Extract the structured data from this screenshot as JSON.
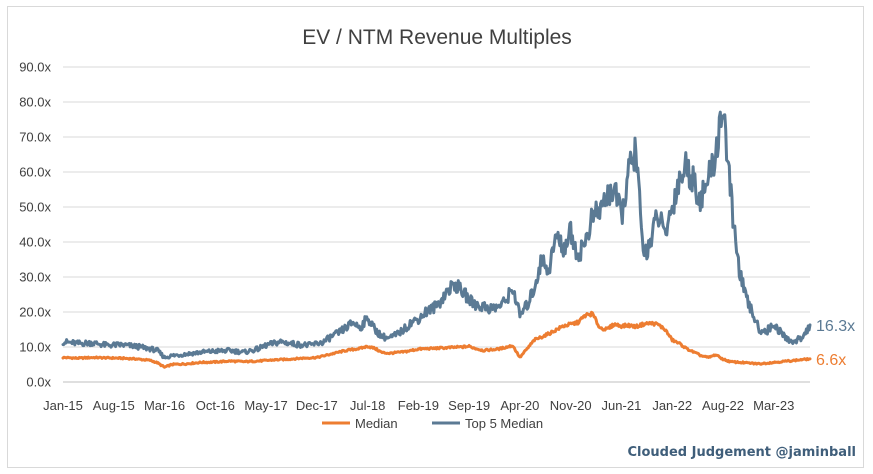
{
  "chart_data": {
    "type": "line",
    "title": "EV / NTM Revenue Multiples",
    "xlabel": "",
    "ylabel": "",
    "ylim": [
      0,
      90
    ],
    "y_ticks": [
      "0.0x",
      "10.0x",
      "20.0x",
      "30.0x",
      "40.0x",
      "50.0x",
      "60.0x",
      "70.0x",
      "80.0x",
      "90.0x"
    ],
    "x_ticks": [
      "Jan-15",
      "Aug-15",
      "Mar-16",
      "Oct-16",
      "May-17",
      "Dec-17",
      "Jul-18",
      "Feb-19",
      "Sep-19",
      "Apr-20",
      "Nov-20",
      "Jun-21",
      "Jan-22",
      "Aug-22",
      "Mar-23"
    ],
    "x_tick_months": [
      0,
      7,
      14,
      21,
      28,
      35,
      42,
      49,
      56,
      63,
      70,
      77,
      84,
      91,
      98
    ],
    "x_range_months": [
      0,
      103
    ],
    "grid": true,
    "legend_position": "bottom",
    "series": [
      {
        "name": "Median",
        "color": "#ed7d31",
        "end_label": "6.6x",
        "points": [
          [
            0,
            7.0
          ],
          [
            2,
            6.8
          ],
          [
            4,
            7.0
          ],
          [
            6,
            6.9
          ],
          [
            8,
            6.8
          ],
          [
            10,
            6.6
          ],
          [
            12,
            6.2
          ],
          [
            13,
            5.5
          ],
          [
            14,
            4.2
          ],
          [
            15,
            5.0
          ],
          [
            17,
            5.2
          ],
          [
            19,
            5.6
          ],
          [
            21,
            5.7
          ],
          [
            23,
            6.0
          ],
          [
            25,
            5.8
          ],
          [
            27,
            6.0
          ],
          [
            29,
            6.3
          ],
          [
            31,
            6.5
          ],
          [
            33,
            6.8
          ],
          [
            35,
            7.0
          ],
          [
            37,
            8.0
          ],
          [
            39,
            9.0
          ],
          [
            41,
            9.6
          ],
          [
            42,
            10.2
          ],
          [
            43,
            9.6
          ],
          [
            44,
            8.4
          ],
          [
            45,
            8.2
          ],
          [
            47,
            8.6
          ],
          [
            49,
            9.4
          ],
          [
            51,
            9.6
          ],
          [
            53,
            9.8
          ],
          [
            55,
            10.0
          ],
          [
            56,
            10.2
          ],
          [
            57,
            9.5
          ],
          [
            58,
            9.0
          ],
          [
            60,
            9.4
          ],
          [
            62,
            10.4
          ],
          [
            63,
            7.0
          ],
          [
            64,
            9.5
          ],
          [
            65,
            12.0
          ],
          [
            67,
            13.8
          ],
          [
            69,
            16.0
          ],
          [
            71,
            17.0
          ],
          [
            72,
            19.0
          ],
          [
            73,
            19.5
          ],
          [
            74,
            15.5
          ],
          [
            75,
            15.0
          ],
          [
            76,
            16.5
          ],
          [
            77,
            16.0
          ],
          [
            78,
            16.2
          ],
          [
            79,
            15.8
          ],
          [
            80,
            16.5
          ],
          [
            81,
            16.8
          ],
          [
            82,
            16.5
          ],
          [
            83,
            15.0
          ],
          [
            84,
            12.0
          ],
          [
            85,
            11.0
          ],
          [
            86,
            9.5
          ],
          [
            87,
            8.5
          ],
          [
            88,
            7.5
          ],
          [
            89,
            7.0
          ],
          [
            90,
            7.8
          ],
          [
            91,
            6.5
          ],
          [
            92,
            5.8
          ],
          [
            94,
            5.5
          ],
          [
            96,
            5.2
          ],
          [
            98,
            5.6
          ],
          [
            100,
            6.0
          ],
          [
            101,
            6.2
          ],
          [
            102,
            6.4
          ],
          [
            103,
            6.6
          ]
        ]
      },
      {
        "name": "Top 5 Median",
        "color": "#5b7a94",
        "end_label": "16.3x",
        "points": [
          [
            0,
            11.5
          ],
          [
            2,
            11.0
          ],
          [
            4,
            11.2
          ],
          [
            6,
            10.5
          ],
          [
            8,
            10.6
          ],
          [
            10,
            10.2
          ],
          [
            12,
            9.5
          ],
          [
            13,
            9.0
          ],
          [
            14,
            7.0
          ],
          [
            15,
            7.5
          ],
          [
            17,
            8.0
          ],
          [
            19,
            8.5
          ],
          [
            21,
            8.8
          ],
          [
            23,
            9.0
          ],
          [
            25,
            8.5
          ],
          [
            27,
            9.5
          ],
          [
            28,
            10.5
          ],
          [
            30,
            11.5
          ],
          [
            32,
            10.8
          ],
          [
            34,
            10.5
          ],
          [
            36,
            11.5
          ],
          [
            37,
            13.0
          ],
          [
            38,
            14.0
          ],
          [
            39,
            15.5
          ],
          [
            40,
            17.0
          ],
          [
            41,
            15.5
          ],
          [
            42,
            18.5
          ],
          [
            43,
            15.0
          ],
          [
            44,
            13.0
          ],
          [
            45,
            12.5
          ],
          [
            46,
            13.5
          ],
          [
            47,
            15.0
          ],
          [
            48,
            17.0
          ],
          [
            49,
            18.0
          ],
          [
            50,
            20.0
          ],
          [
            51,
            21.0
          ],
          [
            52,
            23.0
          ],
          [
            53,
            26.0
          ],
          [
            54,
            28.0
          ],
          [
            55,
            26.0
          ],
          [
            56,
            23.5
          ],
          [
            57,
            22.0
          ],
          [
            58,
            21.5
          ],
          [
            59,
            21.0
          ],
          [
            60,
            21.5
          ],
          [
            61,
            23.0
          ],
          [
            62,
            27.0
          ],
          [
            63,
            19.0
          ],
          [
            64,
            22.0
          ],
          [
            65,
            27.0
          ],
          [
            66,
            35.0
          ],
          [
            67,
            32.0
          ],
          [
            68,
            42.0
          ],
          [
            69,
            38.0
          ],
          [
            70,
            43.0
          ],
          [
            71,
            36.0
          ],
          [
            72,
            40.0
          ],
          [
            73,
            47.0
          ],
          [
            74,
            49.0
          ],
          [
            75,
            53.0
          ],
          [
            76,
            55.0
          ],
          [
            77,
            47.0
          ],
          [
            78,
            60.0
          ],
          [
            79,
            66.5
          ],
          [
            80,
            36.0
          ],
          [
            81,
            40.0
          ],
          [
            82,
            48.0
          ],
          [
            83,
            42.0
          ],
          [
            84,
            50.0
          ],
          [
            85,
            58.0
          ],
          [
            86,
            62.0
          ],
          [
            87,
            57.0
          ],
          [
            88,
            52.0
          ],
          [
            89,
            58.0
          ],
          [
            90,
            65.0
          ],
          [
            91,
            79.5
          ],
          [
            92,
            55.0
          ],
          [
            93,
            35.0
          ],
          [
            94,
            25.0
          ],
          [
            95,
            20.0
          ],
          [
            96,
            15.0
          ],
          [
            97,
            14.5
          ],
          [
            98,
            16.5
          ],
          [
            99,
            14.0
          ],
          [
            100,
            12.0
          ],
          [
            101,
            11.5
          ],
          [
            102,
            13.0
          ],
          [
            103,
            16.3
          ]
        ]
      }
    ]
  },
  "watermark": "Clouded Judgement @jaminball"
}
